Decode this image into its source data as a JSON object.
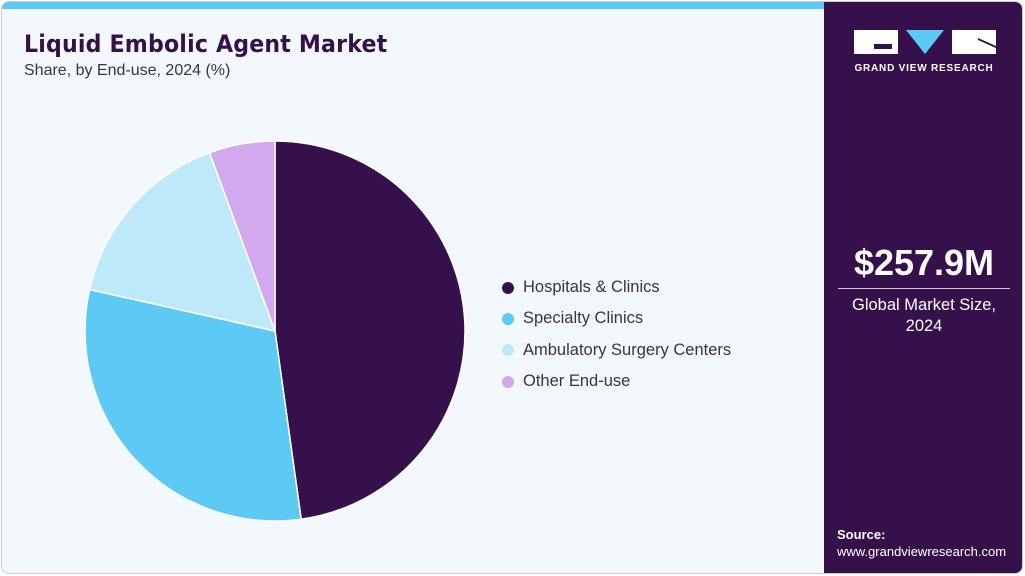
{
  "header": {
    "title": "Liquid Embolic Agent Market",
    "subtitle": "Share, by End-use, 2024 (%)"
  },
  "legend": {
    "items": [
      {
        "label": "Hospitals & Clinics",
        "color": "#35104a"
      },
      {
        "label": "Specialty Clinics",
        "color": "#5ccaf5"
      },
      {
        "label": "Ambulatory Surgery Centers",
        "color": "#bde9fa"
      },
      {
        "label": "Other End-use",
        "color": "#d3a9ee"
      }
    ]
  },
  "sidebar": {
    "brand": "GRAND VIEW RESEARCH",
    "market_size": "$257.9M",
    "market_label_line1": "Global Market Size,",
    "market_label_line2": "2024",
    "source_heading": "Source:",
    "source_url": "www.grandviewresearch.com"
  },
  "colors": {
    "accent_bar": "#5ccaf5",
    "brand_purple": "#35104a",
    "background": "#f3f8fc"
  },
  "chart_data": {
    "type": "pie",
    "title": "Liquid Embolic Agent Market",
    "subtitle": "Share, by End-use, 2024 (%)",
    "categories": [
      "Hospitals & Clinics",
      "Specialty Clinics",
      "Ambulatory Surgery Centers",
      "Other End-use"
    ],
    "values": [
      47.8,
      30.7,
      15.9,
      5.6
    ],
    "colors": [
      "#35104a",
      "#5ccaf5",
      "#bde9fa",
      "#d3a9ee"
    ],
    "start_angle": "12 o'clock, clockwise",
    "legend_position": "right",
    "annotations": [
      "$257.9M Global Market Size, 2024"
    ]
  }
}
